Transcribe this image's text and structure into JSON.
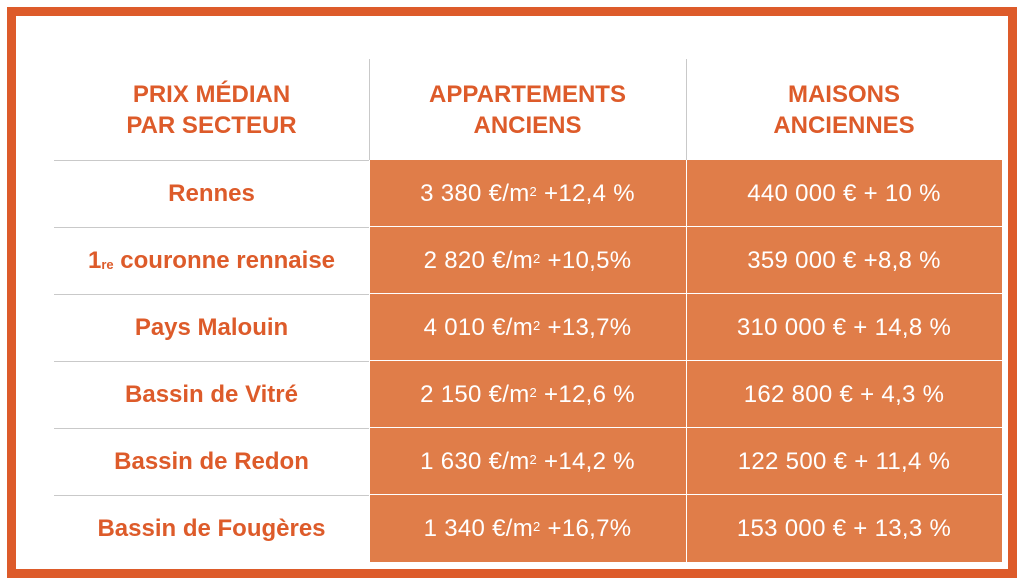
{
  "header": {
    "col1_line1": "PRIX MÉDIAN",
    "col1_line2": "PAR SECTEUR",
    "col2_line1": "APPARTEMENTS",
    "col2_line2": "ANCIENS",
    "col3_line1": "MAISONS",
    "col3_line2": "ANCIENNES"
  },
  "rows": [
    {
      "sector": "Rennes",
      "sector_sup": "",
      "sector_rest": "",
      "appt_price": "3 380 €/m",
      "appt_sup": "2",
      "appt_change": "+12,4 %",
      "house": "440 000 € + 10 %"
    },
    {
      "sector": "1",
      "sector_sup": "re",
      "sector_rest": " couronne rennaise",
      "appt_price": "2 820 €/m",
      "appt_sup": "2",
      "appt_change": "+10,5%",
      "house": "359 000 € +8,8 %"
    },
    {
      "sector": "Pays Malouin",
      "sector_sup": "",
      "sector_rest": "",
      "appt_price": "4 010 €/m",
      "appt_sup": "2",
      "appt_change": "+13,7%",
      "house": "310 000 € + 14,8 %"
    },
    {
      "sector": "Bassin de Vitré",
      "sector_sup": "",
      "sector_rest": "",
      "appt_price": "2 150 €/m",
      "appt_sup": "2",
      "appt_change": "+12,6 %",
      "house": "162 800 € + 4,3 %"
    },
    {
      "sector": "Bassin de Redon",
      "sector_sup": "",
      "sector_rest": "",
      "appt_price": "1 630 €/m",
      "appt_sup": "2",
      "appt_change": "+14,2 %",
      "house": "122 500 € + 11,4 %"
    },
    {
      "sector": "Bassin de Fougères",
      "sector_sup": "",
      "sector_rest": "",
      "appt_price": "1 340 €/m",
      "appt_sup": "2",
      "appt_change": "+16,7%",
      "house": "153 000 € + 13,3 %"
    }
  ],
  "colors": {
    "frame": "#dd5b2a",
    "cell_fill": "#e07d49",
    "label_text": "#dd5b2a"
  }
}
